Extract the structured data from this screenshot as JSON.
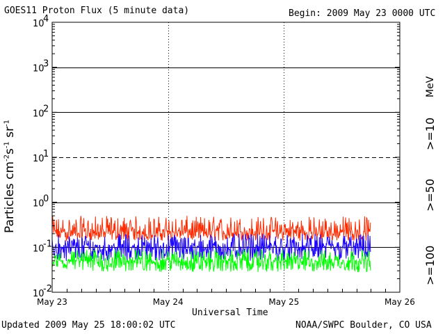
{
  "header": {
    "title": "GOES11 Proton Flux (5 minute data)",
    "begin": "Begin: 2009 May 23 0000 UTC"
  },
  "footer": {
    "updated": "Updated 2009 May 25 18:00:02 UTC",
    "credit": "NOAA/SWPC Boulder, CO USA"
  },
  "colors": {
    "ge10": "#ff2a00",
    "ge50": "#1a00ff",
    "ge100": "#00ff00"
  },
  "chart_data": {
    "type": "line",
    "title": "GOES11 Proton Flux (5 minute data)",
    "xlabel": "Universal Time",
    "ylabel": "Particles cm-2 s-1 sr-1",
    "ylabel_parts": {
      "main": "Particles cm",
      "exp1": "-2",
      "s": "s",
      "exp2": "-1",
      "sr": "sr",
      "exp3": "-1"
    },
    "yscale": "log",
    "ylim": [
      0.01,
      10000
    ],
    "y_ticks": [
      {
        "base": "10",
        "exp": "4",
        "value": 10000
      },
      {
        "base": "10",
        "exp": "3",
        "value": 1000
      },
      {
        "base": "10",
        "exp": "2",
        "value": 100
      },
      {
        "base": "10",
        "exp": "1",
        "value": 10
      },
      {
        "base": "10",
        "exp": "0",
        "value": 1
      },
      {
        "base": "10",
        "exp": "-1",
        "value": 0.1
      },
      {
        "base": "10",
        "exp": "-2",
        "value": 0.01
      }
    ],
    "x_ticks": [
      "May 23",
      "May 24",
      "May 25",
      "May 26"
    ],
    "x_range_days": [
      0,
      3
    ],
    "data_end_day": 2.75,
    "threshold_lines": [
      {
        "value": 1000,
        "style": "solid"
      },
      {
        "value": 100,
        "style": "solid"
      },
      {
        "value": 10,
        "style": "dashed"
      },
      {
        "value": 1,
        "style": "solid"
      },
      {
        "value": 0.1,
        "style": "solid"
      }
    ],
    "right_labels": {
      "unit": "MeV",
      "ge10": ">=10",
      "ge50": ">=50",
      "ge100": ">=100"
    },
    "series": [
      {
        "name": ">=10 MeV",
        "color": "#ff2a00",
        "min": 0.14,
        "typical": 0.22,
        "max": 0.5
      },
      {
        "name": ">=50 MeV",
        "color": "#1a00ff",
        "min": 0.05,
        "typical": 0.1,
        "max": 0.2
      },
      {
        "name": ">=100 MeV",
        "color": "#00ff00",
        "min": 0.028,
        "typical": 0.05,
        "max": 0.09
      }
    ]
  }
}
